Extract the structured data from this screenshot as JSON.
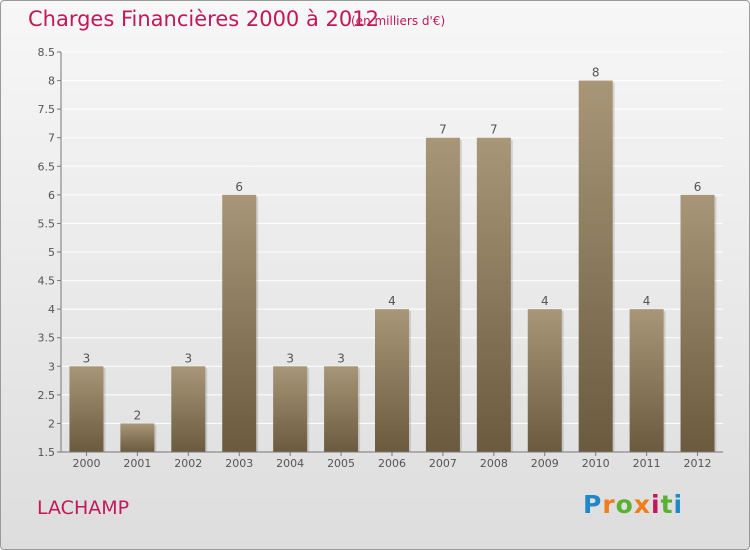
{
  "title": "Charges Financières 2000 à 2012",
  "subtitle": "(en milliers d'€)",
  "place": "LACHAMP",
  "logo": {
    "letters": [
      "P",
      "r",
      "o",
      "x",
      "i",
      "t",
      "i"
    ],
    "colors": [
      "#1e88c9",
      "#ef7d1a",
      "#5ab030",
      "#ef7d1a",
      "#c2185b",
      "#5ab030",
      "#1e88c9"
    ]
  },
  "chart_data": {
    "type": "bar",
    "categories": [
      "2000",
      "2001",
      "2002",
      "2003",
      "2004",
      "2005",
      "2006",
      "2007",
      "2008",
      "2009",
      "2010",
      "2011",
      "2012"
    ],
    "values": [
      3,
      2,
      3,
      6,
      3,
      3,
      4,
      7,
      7,
      4,
      8,
      4,
      6
    ],
    "data_labels": [
      "3",
      "2",
      "3",
      "6",
      "3",
      "3",
      "4",
      "7",
      "7",
      "4",
      "8",
      "4",
      "6"
    ],
    "ylim": [
      1.5,
      8.5
    ],
    "y_ticks": [
      "1.5",
      "2",
      "2.5",
      "3",
      "3.5",
      "4",
      "4.5",
      "5",
      "5.5",
      "6",
      "6.5",
      "7",
      "7.5",
      "8",
      "8.5"
    ],
    "grid": true,
    "colors": {
      "bar_top": "#a89677",
      "bar_bottom": "#6b5a3f",
      "grid": "#ffffff",
      "axis": "#777777",
      "text": "#555555"
    }
  }
}
